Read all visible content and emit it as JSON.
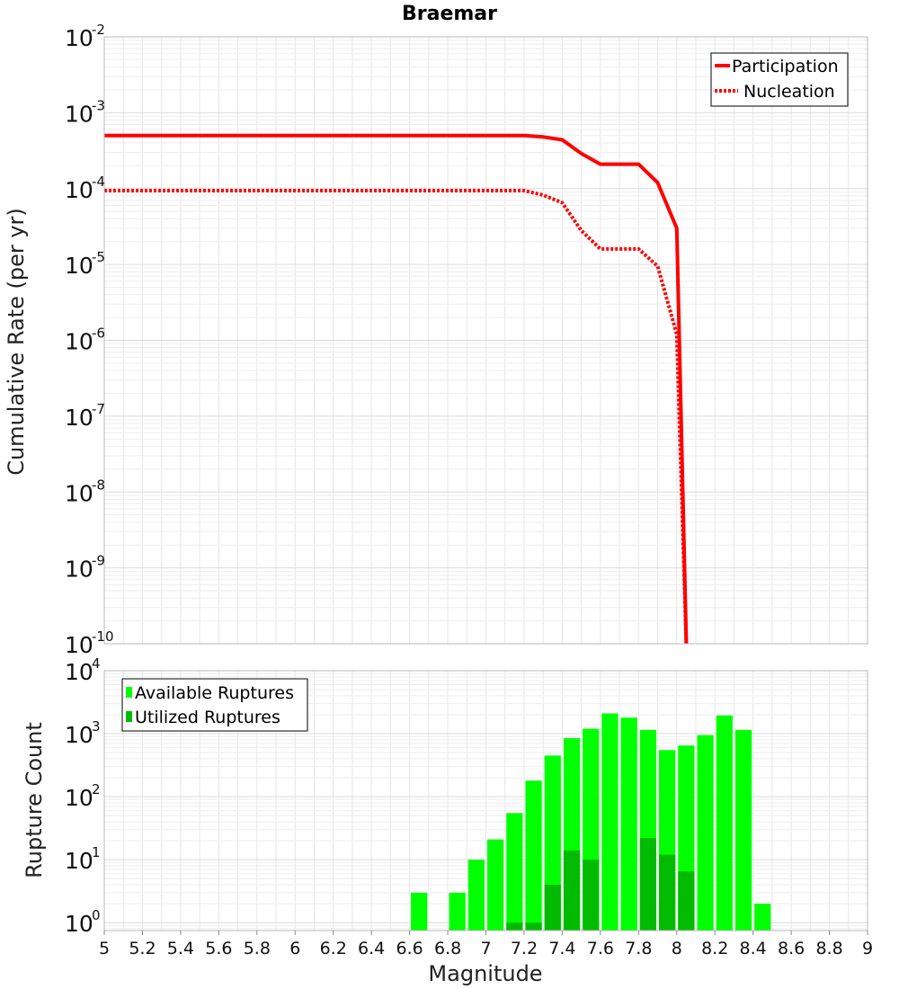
{
  "chart_data": [
    {
      "type": "line",
      "title": "Braemar",
      "xlabel": "",
      "ylabel": "Cumulative Rate (per yr)",
      "yscale": "log",
      "xlim": [
        5,
        9
      ],
      "ylim": [
        1e-10,
        0.01
      ],
      "y_tick_base": "10",
      "y_tick_exponents": [
        "-10",
        "-9",
        "-8",
        "-7",
        "-6",
        "-5",
        "-4",
        "-3",
        "-2"
      ],
      "legend_position": "top-right",
      "series": [
        {
          "name": "Participation",
          "style": "solid",
          "color": "#ff0000",
          "x": [
            5.0,
            7.2,
            7.3,
            7.4,
            7.5,
            7.6,
            7.7,
            7.8,
            7.9,
            8.0,
            8.05
          ],
          "y": [
            0.0005,
            0.0005,
            0.00048,
            0.00044,
            0.00029,
            0.00021,
            0.00021,
            0.00021,
            0.00012,
            3e-05,
            1e-10
          ]
        },
        {
          "name": "Nucleation",
          "style": "dotted",
          "color": "#ff0000",
          "x": [
            5.0,
            7.2,
            7.3,
            7.4,
            7.5,
            7.6,
            7.7,
            7.8,
            7.9,
            8.0,
            8.05
          ],
          "y": [
            9.4e-05,
            9.4e-05,
            8.2e-05,
            6.5e-05,
            2.8e-05,
            1.6e-05,
            1.6e-05,
            1.6e-05,
            9.5e-06,
            1.2e-06,
            1e-10
          ]
        }
      ]
    },
    {
      "type": "bar",
      "xlabel": "Magnitude",
      "ylabel": "Rupture Count",
      "yscale": "log",
      "xlim": [
        5,
        9
      ],
      "ylim": [
        0.75,
        10000
      ],
      "y_tick_base": "10",
      "y_tick_exponents": [
        "0",
        "1",
        "2",
        "3",
        "4"
      ],
      "x_ticks": [
        "5",
        "5.2",
        "5.4",
        "5.6",
        "5.8",
        "6",
        "6.2",
        "6.4",
        "6.6",
        "6.8",
        "7",
        "7.2",
        "7.4",
        "7.6",
        "7.8",
        "8",
        "8.2",
        "8.4",
        "8.6",
        "8.8",
        "9"
      ],
      "bar_width": 0.1,
      "legend_position": "top-left",
      "series": [
        {
          "name": "Available Ruptures",
          "color": "#00ff00",
          "x": [
            6.65,
            6.85,
            6.95,
            7.05,
            7.15,
            7.25,
            7.35,
            7.45,
            7.55,
            7.65,
            7.75,
            7.85,
            7.95,
            8.05,
            8.15,
            8.25,
            8.35,
            8.45
          ],
          "values": [
            3,
            3,
            10,
            21,
            55,
            180,
            450,
            850,
            1200,
            2100,
            1800,
            1150,
            550,
            650,
            950,
            1950,
            1150,
            2
          ]
        },
        {
          "name": "Utilized Ruptures",
          "color": "#00bb00",
          "x": [
            7.15,
            7.25,
            7.35,
            7.45,
            7.55,
            7.85,
            7.95,
            8.05
          ],
          "values": [
            1,
            1,
            4,
            14,
            10,
            22,
            12,
            6.5
          ]
        }
      ]
    }
  ]
}
